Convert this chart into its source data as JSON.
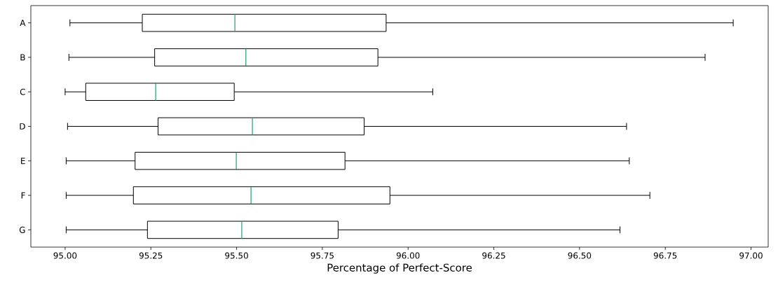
{
  "chart_data": {
    "type": "box",
    "orientation": "horizontal",
    "xlabel": "Percentage of Perfect-Score",
    "categories": [
      "A",
      "B",
      "C",
      "D",
      "E",
      "F",
      "G"
    ],
    "boxes": [
      {
        "low": 95.014,
        "q1": 95.225,
        "median": 95.495,
        "q3": 95.936,
        "high": 96.948
      },
      {
        "low": 95.011,
        "q1": 95.261,
        "median": 95.527,
        "q3": 95.912,
        "high": 96.866
      },
      {
        "low": 95.0,
        "q1": 95.06,
        "median": 95.264,
        "q3": 95.493,
        "high": 96.072
      },
      {
        "low": 95.007,
        "q1": 95.271,
        "median": 95.546,
        "q3": 95.872,
        "high": 96.637
      },
      {
        "low": 95.003,
        "q1": 95.204,
        "median": 95.499,
        "q3": 95.816,
        "high": 96.645
      },
      {
        "low": 95.003,
        "q1": 95.199,
        "median": 95.542,
        "q3": 95.947,
        "high": 96.705
      },
      {
        "low": 95.003,
        "q1": 95.24,
        "median": 95.515,
        "q3": 95.796,
        "high": 96.618
      }
    ],
    "xlim": [
      94.9,
      97.05
    ],
    "xticks": [
      {
        "value": 95,
        "label": "95.00"
      },
      {
        "value": 95.25,
        "label": "95.25"
      },
      {
        "value": 95.5,
        "label": "95.50"
      },
      {
        "value": 95.75,
        "label": "95.75"
      },
      {
        "value": 96,
        "label": "96.00"
      },
      {
        "value": 96.25,
        "label": "96.25"
      },
      {
        "value": 96.5,
        "label": "96.50"
      },
      {
        "value": 96.75,
        "label": "96.75"
      },
      {
        "value": 97,
        "label": "97.00"
      }
    ],
    "grid": false
  }
}
